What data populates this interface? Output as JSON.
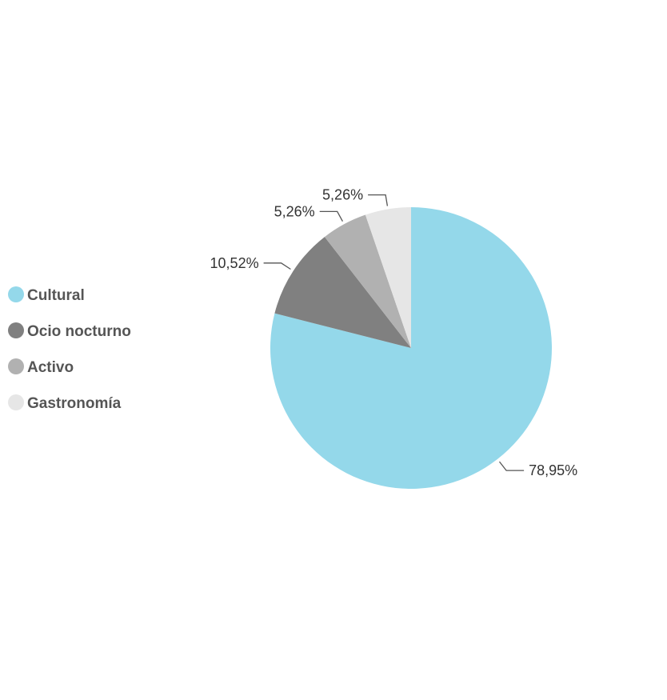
{
  "chart_data": {
    "type": "pie",
    "title": "",
    "categories": [
      "Cultural",
      "Ocio nocturno",
      "Activo",
      "Gastronomía"
    ],
    "values": [
      78.95,
      10.52,
      5.26,
      5.26
    ],
    "labels": [
      "78,95%",
      "10,52%",
      "5,26%",
      "5,26%"
    ],
    "colors": [
      "#94d8ea",
      "#808080",
      "#b1b1b1",
      "#e6e6e6"
    ],
    "start_angle_deg": 0,
    "direction": "clockwise",
    "legend_position": "left"
  }
}
